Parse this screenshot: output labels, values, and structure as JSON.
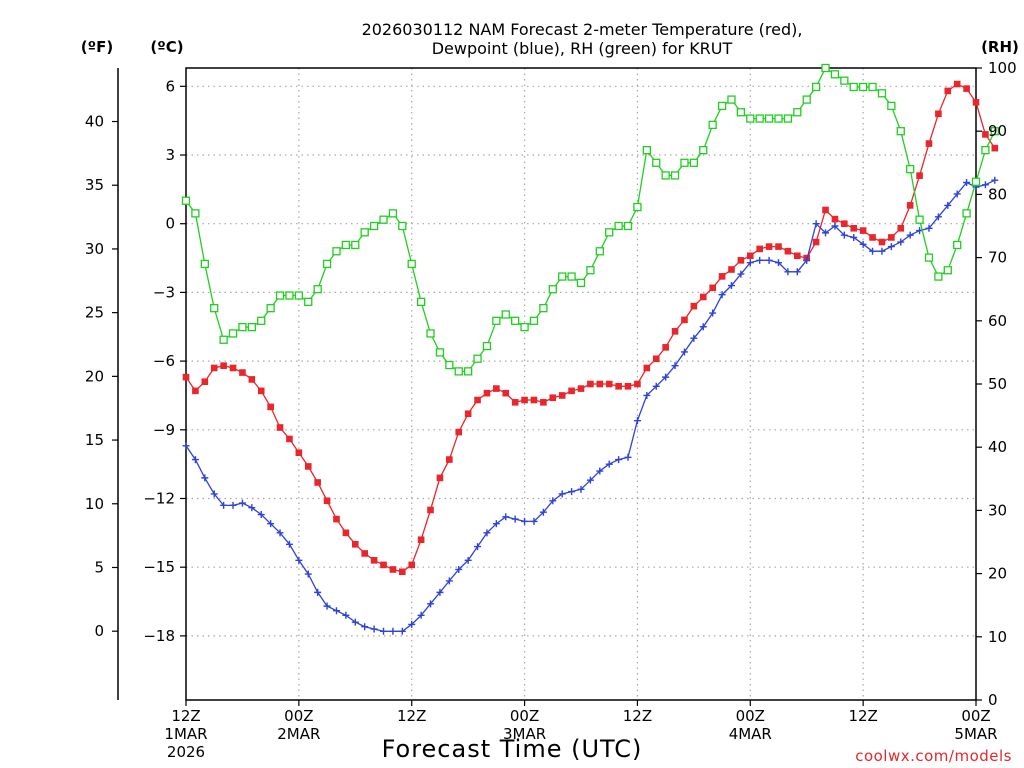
{
  "chart_data": {
    "type": "line",
    "title": [
      "2026030112 NAM Forecast 2-meter Temperature (red),",
      "Dewpoint (blue), RH (green) for KRUT"
    ],
    "xlabel": "Forecast Time (UTC)",
    "credit": "coolwx.com/models",
    "unit_labels": {
      "fahrenheit": "(ºF)",
      "celsius": "(ºC)",
      "rh": "(RH)"
    },
    "x_range_hours": [
      0,
      84
    ],
    "x_ticks": [
      {
        "hour": 0,
        "lines": [
          "12Z",
          "1MAR",
          "2026"
        ]
      },
      {
        "hour": 12,
        "lines": [
          "00Z",
          "2MAR"
        ]
      },
      {
        "hour": 24,
        "lines": [
          "12Z"
        ]
      },
      {
        "hour": 36,
        "lines": [
          "00Z",
          "3MAR"
        ]
      },
      {
        "hour": 48,
        "lines": [
          "12Z"
        ]
      },
      {
        "hour": 60,
        "lines": [
          "00Z",
          "4MAR"
        ]
      },
      {
        "hour": 72,
        "lines": [
          "12Z"
        ]
      },
      {
        "hour": 84,
        "lines": [
          "00Z",
          "5MAR"
        ]
      }
    ],
    "y_celsius": {
      "range": [
        -20.8,
        6.8
      ],
      "ticks": [
        6,
        3,
        0,
        -3,
        -6,
        -9,
        -12,
        -15,
        -18
      ]
    },
    "y_fahrenheit": {
      "range": [
        -5.4,
        44.2
      ],
      "ticks": [
        40,
        35,
        30,
        25,
        20,
        15,
        10,
        5,
        0
      ]
    },
    "y_rh": {
      "range": [
        0,
        100
      ],
      "ticks": [
        100,
        90,
        80,
        70,
        60,
        50,
        40,
        30,
        20,
        10,
        0
      ]
    },
    "series": [
      {
        "name": "Temperature (°C)",
        "color": "#e8262b",
        "marker": "filled-square",
        "axis": "celsius",
        "values": [
          -6.7,
          -7.3,
          -6.9,
          -6.3,
          -6.2,
          -6.3,
          -6.5,
          -6.8,
          -7.3,
          -8.0,
          -8.9,
          -9.4,
          -10.0,
          -10.6,
          -11.3,
          -12.1,
          -12.9,
          -13.5,
          -14.0,
          -14.4,
          -14.7,
          -14.9,
          -15.1,
          -15.2,
          -14.9,
          -13.8,
          -12.5,
          -11.1,
          -10.3,
          -9.1,
          -8.3,
          -7.7,
          -7.4,
          -7.2,
          -7.4,
          -7.8,
          -7.7,
          -7.7,
          -7.8,
          -7.6,
          -7.5,
          -7.3,
          -7.2,
          -7.0,
          -7.0,
          -7.0,
          -7.1,
          -7.1,
          -7.0,
          -6.3,
          -5.9,
          -5.4,
          -4.7,
          -4.2,
          -3.6,
          -3.2,
          -2.8,
          -2.3,
          -2.0,
          -1.6,
          -1.4,
          -1.1,
          -1.0,
          -1.0,
          -1.2,
          -1.4,
          -1.5,
          -0.8,
          0.6,
          0.2,
          0.0,
          -0.2,
          -0.3,
          -0.6,
          -0.8,
          -0.6,
          -0.2,
          0.8,
          2.1,
          3.5,
          4.8,
          5.8,
          6.1,
          5.9,
          5.3,
          3.9,
          3.3
        ]
      },
      {
        "name": "Dewpoint (°C)",
        "color": "#2e43d8",
        "marker": "plus",
        "axis": "celsius",
        "values": [
          -9.7,
          -10.3,
          -11.1,
          -11.8,
          -12.3,
          -12.3,
          -12.2,
          -12.4,
          -12.7,
          -13.1,
          -13.5,
          -14.0,
          -14.7,
          -15.3,
          -16.1,
          -16.7,
          -16.9,
          -17.1,
          -17.4,
          -17.6,
          -17.7,
          -17.8,
          -17.8,
          -17.8,
          -17.5,
          -17.1,
          -16.6,
          -16.1,
          -15.6,
          -15.1,
          -14.7,
          -14.1,
          -13.5,
          -13.1,
          -12.8,
          -12.9,
          -13.0,
          -13.0,
          -12.6,
          -12.1,
          -11.8,
          -11.7,
          -11.6,
          -11.2,
          -10.8,
          -10.5,
          -10.3,
          -10.2,
          -8.6,
          -7.5,
          -7.1,
          -6.7,
          -6.2,
          -5.6,
          -5.0,
          -4.5,
          -3.9,
          -3.1,
          -2.7,
          -2.2,
          -1.7,
          -1.6,
          -1.6,
          -1.7,
          -2.1,
          -2.1,
          -1.6,
          0.0,
          -0.4,
          -0.1,
          -0.5,
          -0.6,
          -0.9,
          -1.2,
          -1.2,
          -1.0,
          -0.8,
          -0.5,
          -0.3,
          -0.2,
          0.3,
          0.8,
          1.3,
          1.8,
          1.6,
          1.7,
          1.9
        ]
      },
      {
        "name": "RH (%)",
        "color": "#21cf21",
        "marker": "open-square",
        "axis": "rh",
        "values": [
          79,
          77,
          69,
          62,
          57,
          58,
          59,
          59,
          60,
          62,
          64,
          64,
          64,
          63,
          65,
          69,
          71,
          72,
          72,
          74,
          75,
          76,
          77,
          75,
          69,
          63,
          58,
          55,
          53,
          52,
          52,
          54,
          56,
          60,
          61,
          60,
          59,
          60,
          62,
          65,
          67,
          67,
          66,
          68,
          71,
          74,
          75,
          75,
          78,
          87,
          85,
          83,
          83,
          85,
          85,
          87,
          91,
          94,
          95,
          93,
          92,
          92,
          92,
          92,
          92,
          93,
          95,
          97,
          100,
          99,
          98,
          97,
          97,
          97,
          96,
          94,
          90,
          84,
          76,
          70,
          67,
          68,
          72,
          77,
          82,
          87,
          90
        ]
      }
    ]
  }
}
